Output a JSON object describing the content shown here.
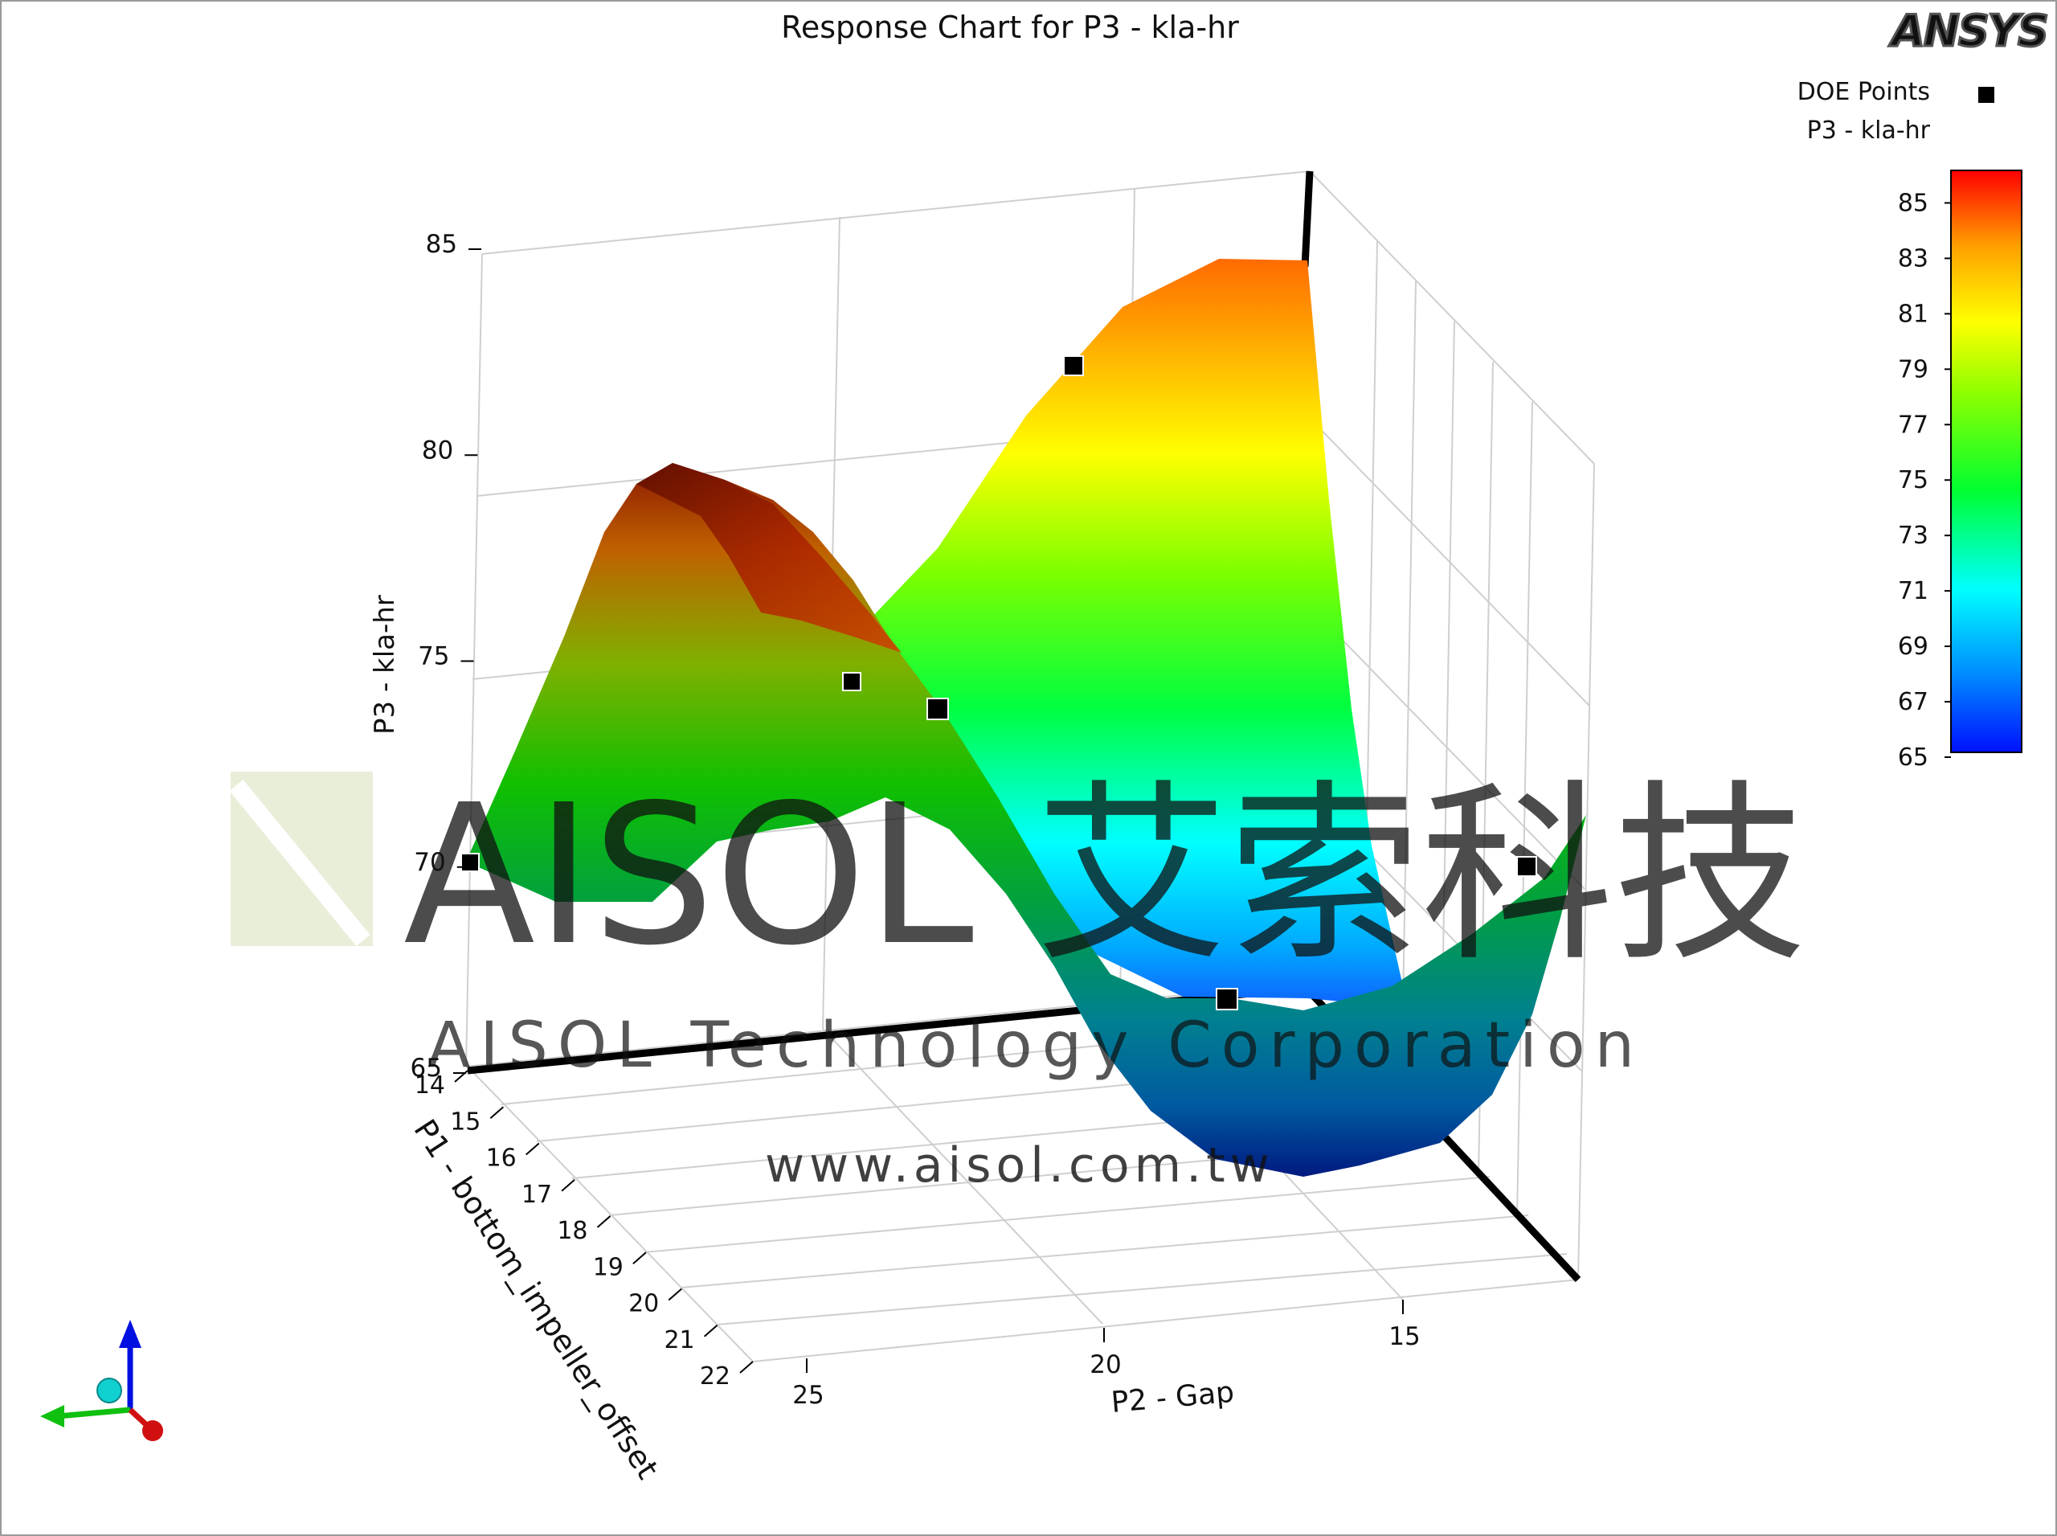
{
  "app": {
    "logo_text": "ANSYS"
  },
  "watermark": {
    "main": "AISOL 艾索科技",
    "sub": "AISOL Technology Corporation",
    "url": "www.aisol.com.tw"
  },
  "legend": {
    "doe_label": "DOE Points",
    "colorbar_title": "P3 - kla-hr"
  },
  "chart_data": {
    "type": "surface",
    "title": "Response Chart for P3 - kla-hr",
    "x_axis": {
      "label": "P2 - Gap",
      "ticks": [
        "25",
        "20",
        "15"
      ]
    },
    "y_axis": {
      "label": "P1 - bottom_impeller_offset",
      "ticks": [
        "14",
        "15",
        "16",
        "17",
        "18",
        "19",
        "20",
        "21",
        "22"
      ]
    },
    "z_axis": {
      "label": "P3 - kla-hr",
      "ticks": [
        "85",
        "80",
        "75",
        "70",
        "65"
      ],
      "range": [
        65,
        86
      ]
    },
    "colorbar": {
      "ticks": [
        "85",
        "83",
        "81",
        "79",
        "77",
        "75",
        "73",
        "71",
        "69",
        "67",
        "65"
      ],
      "range": [
        65,
        86
      ],
      "colors": [
        "#0010ff",
        "#0090ff",
        "#00ffff",
        "#00ff30",
        "#90ff00",
        "#ffff00",
        "#ffa000",
        "#ff0000"
      ]
    },
    "doe_points": [
      {
        "gap": 25,
        "offset": 14,
        "kla": 70.1
      },
      {
        "gap": 21,
        "offset": 14,
        "kla": 83.6
      },
      {
        "gap": 22,
        "offset": 17,
        "kla": 74.8
      },
      {
        "gap": 21,
        "offset": 18,
        "kla": 74.1
      },
      {
        "gap": 15,
        "offset": 18,
        "kla": 69.8
      },
      {
        "gap": 18,
        "offset": 19,
        "kla": 66.4
      },
      {
        "gap": 18,
        "offset": 14,
        "kla": 75.0
      }
    ]
  }
}
